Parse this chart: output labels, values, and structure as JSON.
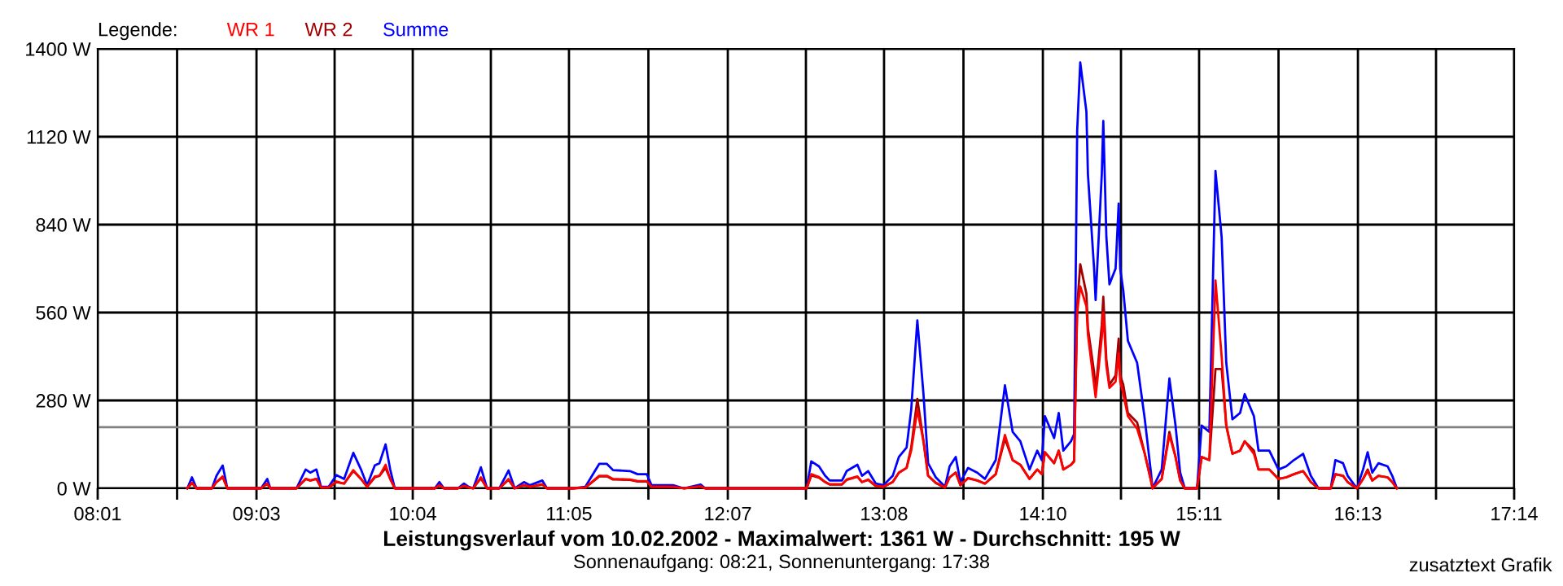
{
  "chart_data": {
    "type": "line",
    "title": "Leistungsverlauf vom 10.02.2002 - Maximalwert: 1361 W - Durchschnitt: 195 W",
    "subtitle": "Sonnenaufgang: 08:21, Sonnenuntergang: 17:38",
    "annotations": [
      "zusatztext Grafik"
    ],
    "legend_title": "Legende:",
    "legend": "top left",
    "grid": true,
    "marker": "none",
    "line_style": "solid",
    "x": [
      8.6,
      8.63,
      8.66,
      8.76,
      8.79,
      8.83,
      8.86,
      8.97,
      9.08,
      9.12,
      9.14,
      9.2,
      9.31,
      9.37,
      9.4,
      9.44,
      9.47,
      9.52,
      9.57,
      9.62,
      9.68,
      9.73,
      9.77,
      9.82,
      9.85,
      9.89,
      9.92,
      9.95,
      10.21,
      10.24,
      10.27,
      10.36,
      10.4,
      10.43,
      10.46,
      10.51,
      10.55,
      10.63,
      10.69,
      10.73,
      10.79,
      10.83,
      10.91,
      10.94,
      11.11,
      11.19,
      11.28,
      11.33,
      11.37,
      11.48,
      11.53,
      11.59,
      11.62,
      11.76,
      11.83,
      11.94,
      11.97,
      12.47,
      12.57,
      12.63,
      12.66,
      12.71,
      12.75,
      12.78,
      12.86,
      12.89,
      12.96,
      12.99,
      13.03,
      13.08,
      13.13,
      13.19,
      13.23,
      13.28,
      13.31,
      13.35,
      13.39,
      13.42,
      13.47,
      13.53,
      13.56,
      13.6,
      13.63,
      13.68,
      13.74,
      13.79,
      13.86,
      13.92,
      13.97,
      14.02,
      14.08,
      14.13,
      14.16,
      14.18,
      14.24,
      14.27,
      14.3,
      14.35,
      14.37,
      14.39,
      14.41,
      14.45,
      14.46,
      14.5,
      14.51,
      14.55,
      14.56,
      14.58,
      14.6,
      14.64,
      14.66,
      14.67,
      14.69,
      14.72,
      14.78,
      14.83,
      14.87,
      14.88,
      14.94,
      14.99,
      15.03,
      15.06,
      15.09,
      15.17,
      15.2,
      15.25,
      15.29,
      15.33,
      15.36,
      15.4,
      15.45,
      15.48,
      15.54,
      15.57,
      15.64,
      15.7,
      15.75,
      15.8,
      15.86,
      15.91,
      15.96,
      16.04,
      16.07,
      16.12,
      16.15,
      16.21,
      16.25,
      16.28,
      16.31,
      16.35,
      16.41,
      16.44,
      16.47
    ],
    "series": [
      {
        "name": "WR 1",
        "color": "#ff0000",
        "values": [
          0,
          18,
          0,
          0,
          20,
          38,
          0,
          0,
          0,
          15,
          0,
          0,
          0,
          30,
          25,
          30,
          3,
          3,
          22,
          15,
          58,
          30,
          5,
          38,
          40,
          75,
          30,
          0,
          0,
          10,
          0,
          0,
          8,
          3,
          0,
          35,
          0,
          0,
          30,
          0,
          10,
          5,
          12,
          0,
          0,
          3,
          40,
          40,
          30,
          28,
          23,
          23,
          5,
          5,
          0,
          6,
          0,
          0,
          0,
          0,
          45,
          36,
          20,
          13,
          13,
          28,
          38,
          20,
          28,
          8,
          5,
          20,
          50,
          65,
          120,
          250,
          150,
          40,
          18,
          3,
          35,
          50,
          10,
          33,
          25,
          15,
          45,
          170,
          90,
          75,
          30,
          60,
          45,
          115,
          80,
          120,
          60,
          75,
          85,
          560,
          643,
          580,
          490,
          330,
          290,
          480,
          560,
          390,
          320,
          340,
          430,
          340,
          300,
          230,
          190,
          110,
          25,
          0,
          30,
          170,
          100,
          25,
          0,
          0,
          100,
          90,
          662,
          420,
          200,
          110,
          120,
          150,
          110,
          60,
          60,
          30,
          35,
          45,
          55,
          20,
          0,
          0,
          45,
          40,
          20,
          0,
          30,
          55,
          25,
          40,
          35,
          20,
          0
        ]
      },
      {
        "name": "WR 2",
        "color": "#a00000",
        "values": [
          0,
          17,
          0,
          0,
          20,
          35,
          0,
          0,
          0,
          15,
          0,
          0,
          0,
          30,
          25,
          30,
          2,
          2,
          20,
          15,
          55,
          30,
          5,
          35,
          40,
          65,
          30,
          0,
          0,
          10,
          0,
          0,
          7,
          2,
          0,
          32,
          0,
          0,
          27,
          0,
          10,
          5,
          13,
          0,
          0,
          2,
          38,
          38,
          28,
          27,
          22,
          22,
          5,
          5,
          0,
          6,
          0,
          0,
          0,
          0,
          41,
          34,
          20,
          12,
          12,
          27,
          37,
          20,
          27,
          7,
          5,
          20,
          50,
          65,
          130,
          285,
          150,
          40,
          17,
          2,
          35,
          50,
          10,
          32,
          25,
          15,
          45,
          158,
          90,
          75,
          30,
          60,
          45,
          115,
          80,
          120,
          60,
          75,
          88,
          580,
          714,
          620,
          510,
          370,
          310,
          520,
          610,
          410,
          330,
          360,
          477,
          360,
          330,
          240,
          210,
          110,
          25,
          0,
          30,
          180,
          100,
          25,
          0,
          0,
          100,
          90,
          380,
          380,
          200,
          110,
          120,
          150,
          120,
          60,
          60,
          30,
          35,
          45,
          55,
          20,
          0,
          0,
          45,
          40,
          20,
          0,
          30,
          60,
          25,
          40,
          35,
          20,
          0
        ]
      },
      {
        "name": "Summe",
        "color": "#0000ff",
        "values": [
          0,
          35,
          0,
          0,
          40,
          73,
          0,
          0,
          0,
          30,
          0,
          0,
          0,
          60,
          50,
          60,
          5,
          5,
          42,
          30,
          113,
          60,
          10,
          73,
          80,
          140,
          60,
          0,
          0,
          20,
          0,
          0,
          15,
          5,
          0,
          67,
          0,
          0,
          57,
          0,
          20,
          10,
          25,
          0,
          0,
          5,
          78,
          78,
          58,
          55,
          45,
          45,
          10,
          10,
          0,
          12,
          0,
          0,
          0,
          0,
          86,
          70,
          40,
          25,
          25,
          55,
          75,
          40,
          55,
          15,
          10,
          40,
          100,
          130,
          250,
          535,
          300,
          80,
          35,
          5,
          70,
          100,
          20,
          65,
          50,
          30,
          90,
          328,
          180,
          150,
          60,
          120,
          90,
          230,
          160,
          240,
          120,
          150,
          173,
          1140,
          1357,
          1200,
          1000,
          700,
          600,
          1000,
          1170,
          800,
          650,
          700,
          907,
          700,
          630,
          470,
          400,
          220,
          50,
          0,
          60,
          350,
          200,
          50,
          0,
          0,
          200,
          180,
          1011,
          800,
          400,
          220,
          240,
          300,
          230,
          120,
          120,
          60,
          70,
          90,
          110,
          40,
          0,
          0,
          90,
          80,
          40,
          0,
          60,
          115,
          50,
          80,
          70,
          40,
          0
        ]
      }
    ],
    "xlim": [
      8.0167,
      17.2333
    ],
    "xticks": [
      {
        "value": 8.0167,
        "label": "08:01"
      },
      {
        "value": 8.5333,
        "label": null
      },
      {
        "value": 9.05,
        "label": "09:03"
      },
      {
        "value": 9.5583,
        "label": null
      },
      {
        "value": 10.0667,
        "label": "10:04"
      },
      {
        "value": 10.575,
        "label": null
      },
      {
        "value": 11.0833,
        "label": "11:05"
      },
      {
        "value": 11.6,
        "label": null
      },
      {
        "value": 12.1167,
        "label": "12:07"
      },
      {
        "value": 12.625,
        "label": null
      },
      {
        "value": 13.1333,
        "label": "13:08"
      },
      {
        "value": 13.65,
        "label": null
      },
      {
        "value": 14.1667,
        "label": "14:10"
      },
      {
        "value": 14.675,
        "label": null
      },
      {
        "value": 15.1833,
        "label": "15:11"
      },
      {
        "value": 15.7,
        "label": null
      },
      {
        "value": 16.2167,
        "label": "16:13"
      },
      {
        "value": 16.725,
        "label": null
      },
      {
        "value": 17.2333,
        "label": "17:14"
      }
    ],
    "ylim": [
      0,
      1400
    ],
    "yticks": [
      {
        "value": 0,
        "label": "0 W"
      },
      {
        "value": 280,
        "label": "280 W"
      },
      {
        "value": 560,
        "label": "560 W"
      },
      {
        "value": 840,
        "label": "840 W"
      },
      {
        "value": 1120,
        "label": "1120 W"
      },
      {
        "value": 1400,
        "label": "1400 W"
      }
    ],
    "ref_lines": [
      {
        "axis": "y",
        "value": 195,
        "color": "#808080"
      }
    ]
  }
}
